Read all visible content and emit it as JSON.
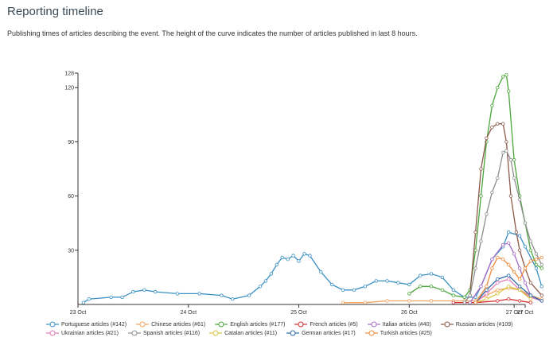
{
  "page": {
    "title": "Reporting timeline",
    "subtitle": "Publishing times of articles describing the event. The height of the curve indicates the number of articles published in last 8 hours."
  },
  "chart_data": {
    "type": "line",
    "title": "",
    "xlabel": "",
    "ylabel": "",
    "x_unit": "days since 23 Oct 00:00",
    "xlim": [
      0,
      4.05
    ],
    "ylim": [
      0,
      128
    ],
    "y_ticks": [
      30,
      60,
      90,
      120,
      128
    ],
    "x_ticks": [
      {
        "label": "23 Oct",
        "value": 0
      },
      {
        "label": "24 Oct",
        "value": 1
      },
      {
        "label": "25 Oct",
        "value": 2
      },
      {
        "label": "26 Oct",
        "value": 3
      },
      {
        "label": "27 Oct",
        "value": 3.95
      },
      {
        "label": "27 Oct",
        "value": 4.05
      }
    ],
    "grid": false,
    "legend_position": "bottom",
    "series": [
      {
        "name": "Portuguese articles (#142)",
        "color": "#3a8fc4",
        "points": [
          [
            0.05,
            1
          ],
          [
            0.1,
            3
          ],
          [
            0.3,
            4
          ],
          [
            0.4,
            4
          ],
          [
            0.5,
            7
          ],
          [
            0.6,
            8
          ],
          [
            0.7,
            7
          ],
          [
            0.9,
            6
          ],
          [
            1.1,
            6
          ],
          [
            1.3,
            5
          ],
          [
            1.4,
            3
          ],
          [
            1.55,
            5
          ],
          [
            1.65,
            10
          ],
          [
            1.7,
            13
          ],
          [
            1.75,
            17
          ],
          [
            1.8,
            22
          ],
          [
            1.85,
            26
          ],
          [
            1.9,
            25
          ],
          [
            1.95,
            27
          ],
          [
            2.0,
            24
          ],
          [
            2.05,
            28
          ],
          [
            2.1,
            27
          ],
          [
            2.2,
            18
          ],
          [
            2.3,
            11
          ],
          [
            2.4,
            8
          ],
          [
            2.5,
            8
          ],
          [
            2.6,
            10
          ],
          [
            2.7,
            13
          ],
          [
            2.8,
            13
          ],
          [
            2.9,
            12
          ],
          [
            3.0,
            11
          ],
          [
            3.1,
            16
          ],
          [
            3.2,
            17
          ],
          [
            3.3,
            15
          ],
          [
            3.4,
            8
          ],
          [
            3.5,
            4
          ],
          [
            3.6,
            4
          ],
          [
            3.65,
            10
          ],
          [
            3.75,
            25
          ],
          [
            3.85,
            32
          ],
          [
            3.9,
            40
          ],
          [
            4.0,
            38
          ],
          [
            4.05,
            32
          ],
          [
            4.15,
            20
          ],
          [
            4.2,
            10
          ]
        ]
      },
      {
        "name": "Chinese articles (#61)",
        "color": "#f2a35f",
        "points": [
          [
            2.4,
            1
          ],
          [
            2.6,
            1
          ],
          [
            2.8,
            2
          ],
          [
            3.0,
            2
          ],
          [
            3.2,
            2
          ],
          [
            3.4,
            2
          ],
          [
            3.5,
            2
          ],
          [
            3.6,
            2
          ],
          [
            3.7,
            5
          ],
          [
            3.8,
            8
          ],
          [
            3.9,
            9
          ],
          [
            4.0,
            8
          ],
          [
            4.1,
            5
          ],
          [
            4.2,
            3
          ]
        ]
      },
      {
        "name": "English articles (#177)",
        "color": "#4aa53a",
        "points": [
          [
            3.0,
            6
          ],
          [
            3.1,
            10
          ],
          [
            3.2,
            10
          ],
          [
            3.3,
            8
          ],
          [
            3.4,
            5
          ],
          [
            3.5,
            4
          ],
          [
            3.55,
            8
          ],
          [
            3.6,
            30
          ],
          [
            3.65,
            60
          ],
          [
            3.7,
            90
          ],
          [
            3.75,
            110
          ],
          [
            3.8,
            120
          ],
          [
            3.85,
            126
          ],
          [
            3.88,
            127
          ],
          [
            3.9,
            118
          ],
          [
            3.95,
            80
          ],
          [
            4.0,
            60
          ],
          [
            4.05,
            45
          ],
          [
            4.1,
            30
          ],
          [
            4.15,
            22
          ],
          [
            4.2,
            20
          ]
        ]
      },
      {
        "name": "French articles (#5)",
        "color": "#d62f2f",
        "points": [
          [
            3.4,
            1
          ],
          [
            3.6,
            1
          ],
          [
            3.8,
            2
          ],
          [
            3.9,
            3
          ],
          [
            4.0,
            2
          ],
          [
            4.1,
            1
          ]
        ]
      },
      {
        "name": "Italian articles (#40)",
        "color": "#a46bc4",
        "points": [
          [
            3.55,
            1
          ],
          [
            3.65,
            10
          ],
          [
            3.75,
            25
          ],
          [
            3.85,
            33
          ],
          [
            3.9,
            34
          ],
          [
            3.95,
            28
          ],
          [
            4.0,
            20
          ],
          [
            4.05,
            12
          ],
          [
            4.1,
            5
          ],
          [
            4.2,
            2
          ]
        ]
      },
      {
        "name": "Russian articles (#109)",
        "color": "#8c5a4a",
        "points": [
          [
            3.5,
            1
          ],
          [
            3.55,
            5
          ],
          [
            3.6,
            40
          ],
          [
            3.65,
            75
          ],
          [
            3.7,
            92
          ],
          [
            3.75,
            98
          ],
          [
            3.8,
            100
          ],
          [
            3.85,
            100
          ],
          [
            3.88,
            90
          ],
          [
            3.92,
            60
          ],
          [
            3.97,
            40
          ],
          [
            4.0,
            30
          ],
          [
            4.05,
            20
          ],
          [
            4.1,
            12
          ],
          [
            4.2,
            5
          ]
        ]
      },
      {
        "name": "Ukrainian articles (#21)",
        "color": "#e07ab8",
        "points": [
          [
            3.6,
            1
          ],
          [
            3.7,
            6
          ],
          [
            3.8,
            12
          ],
          [
            3.9,
            14
          ],
          [
            4.0,
            8
          ],
          [
            4.1,
            4
          ],
          [
            4.2,
            2
          ]
        ]
      },
      {
        "name": "Spanish articles (#116)",
        "color": "#8e8e8e",
        "points": [
          [
            3.5,
            1
          ],
          [
            3.55,
            5
          ],
          [
            3.6,
            20
          ],
          [
            3.65,
            35
          ],
          [
            3.7,
            50
          ],
          [
            3.75,
            62
          ],
          [
            3.8,
            70
          ],
          [
            3.85,
            84
          ],
          [
            3.88,
            85
          ],
          [
            3.92,
            80
          ],
          [
            3.95,
            70
          ],
          [
            4.0,
            58
          ],
          [
            4.05,
            45
          ],
          [
            4.1,
            35
          ],
          [
            4.15,
            28
          ],
          [
            4.2,
            22
          ]
        ]
      },
      {
        "name": "Catalan articles (#11)",
        "color": "#d6c43a",
        "points": [
          [
            3.6,
            1
          ],
          [
            3.7,
            3
          ],
          [
            3.8,
            6
          ],
          [
            3.9,
            10
          ],
          [
            4.0,
            8
          ],
          [
            4.1,
            3
          ]
        ]
      },
      {
        "name": "German articles (#17)",
        "color": "#2b6aa8",
        "points": [
          [
            3.6,
            1
          ],
          [
            3.7,
            8
          ],
          [
            3.8,
            14
          ],
          [
            3.9,
            16
          ],
          [
            4.0,
            10
          ],
          [
            4.1,
            5
          ],
          [
            4.2,
            2
          ]
        ]
      },
      {
        "name": "Turkish articles (#25)",
        "color": "#ef8a3c",
        "points": [
          [
            3.6,
            1
          ],
          [
            3.7,
            10
          ],
          [
            3.75,
            20
          ],
          [
            3.8,
            26
          ],
          [
            3.85,
            25
          ],
          [
            3.9,
            22
          ],
          [
            3.95,
            18
          ],
          [
            4.0,
            14
          ],
          [
            4.05,
            20
          ],
          [
            4.1,
            24
          ],
          [
            4.15,
            25
          ],
          [
            4.2,
            26
          ]
        ]
      }
    ]
  }
}
